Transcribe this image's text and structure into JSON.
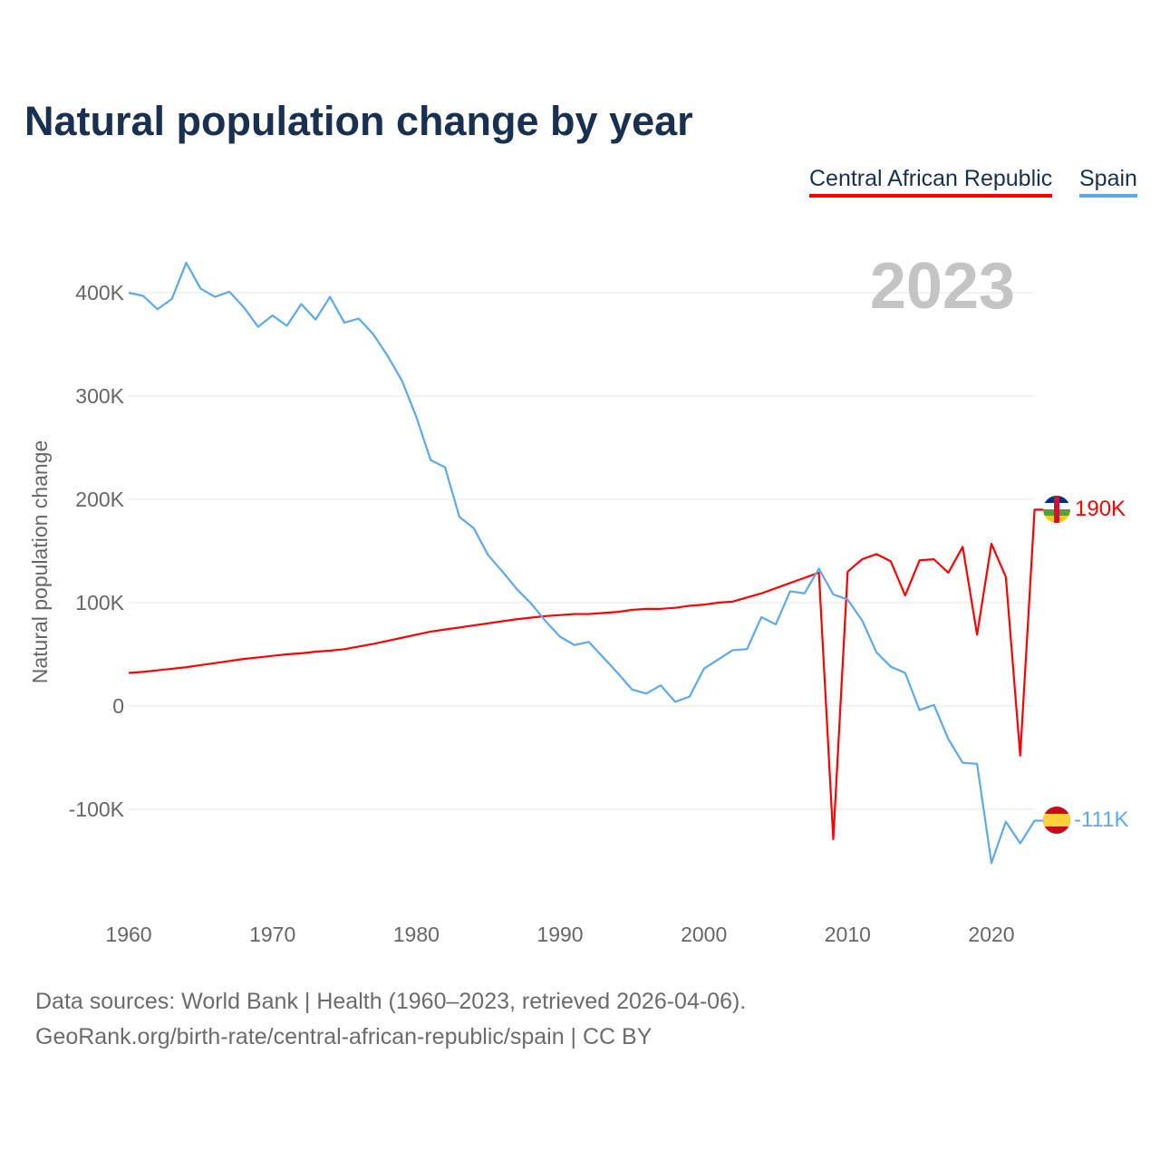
{
  "chart_data": {
    "type": "line",
    "title": "Natural population change by year",
    "ylabel": "Natural population change",
    "xlabel": "",
    "year_watermark": "2023",
    "xlim": [
      1960,
      2023
    ],
    "ylim": [
      -200000,
      450000
    ],
    "x_ticks": [
      1960,
      1970,
      1980,
      1990,
      2000,
      2010,
      2020
    ],
    "x_tick_labels": [
      "1960",
      "1970",
      "1980",
      "1990",
      "2000",
      "2010",
      "2020"
    ],
    "y_ticks": [
      -100000,
      0,
      100000,
      200000,
      300000,
      400000
    ],
    "y_tick_labels": [
      "-100K",
      "0",
      "100K",
      "200K",
      "300K",
      "400K"
    ],
    "grid": true,
    "legend_position": "top-right",
    "x": [
      1960,
      1961,
      1962,
      1963,
      1964,
      1965,
      1966,
      1967,
      1968,
      1969,
      1970,
      1971,
      1972,
      1973,
      1974,
      1975,
      1976,
      1977,
      1978,
      1979,
      1980,
      1981,
      1982,
      1983,
      1984,
      1985,
      1986,
      1987,
      1988,
      1989,
      1990,
      1991,
      1992,
      1993,
      1994,
      1995,
      1996,
      1997,
      1998,
      1999,
      2000,
      2001,
      2002,
      2003,
      2004,
      2005,
      2006,
      2007,
      2008,
      2009,
      2010,
      2011,
      2012,
      2013,
      2014,
      2015,
      2016,
      2017,
      2018,
      2019,
      2020,
      2021,
      2022,
      2023
    ],
    "series": [
      {
        "name": "Central African Republic",
        "color": "#ff0000",
        "end_label": "190K",
        "values": [
          32000,
          33000,
          34500,
          36000,
          37500,
          39500,
          41500,
          43500,
          45500,
          47000,
          48500,
          50000,
          51000,
          52500,
          53500,
          55000,
          57500,
          60000,
          63000,
          66000,
          69000,
          72000,
          74000,
          76000,
          78000,
          80000,
          82000,
          84000,
          85500,
          87000,
          88000,
          89000,
          89000,
          90000,
          91000,
          93000,
          94000,
          94000,
          95000,
          97000,
          98000,
          100000,
          101000,
          105000,
          109000,
          114000,
          119000,
          124000,
          129000,
          -129000,
          130000,
          142000,
          147000,
          140000,
          107000,
          141000,
          142000,
          129000,
          154000,
          69000,
          157000,
          125000,
          -48000,
          190000
        ]
      },
      {
        "name": "Spain",
        "color": "#5ea8ec",
        "end_label": "-111K",
        "values": [
          400000,
          397000,
          384000,
          394000,
          429000,
          404000,
          396000,
          401000,
          386000,
          367000,
          378000,
          368000,
          389000,
          374000,
          396000,
          371000,
          375000,
          360000,
          339000,
          315000,
          280000,
          238000,
          231000,
          183000,
          172000,
          146000,
          130000,
          113000,
          99000,
          82000,
          67000,
          59000,
          62000,
          47000,
          32000,
          16000,
          12000,
          20000,
          4000,
          9000,
          36000,
          45000,
          54000,
          55000,
          86000,
          79000,
          111000,
          109000,
          133000,
          108000,
          103000,
          83000,
          52000,
          38000,
          32000,
          -4000,
          1000,
          -32000,
          -55000,
          -56000,
          -152000,
          -112000,
          -133000,
          -111000
        ]
      }
    ]
  },
  "legend": {
    "car": "Central African Republic",
    "spain": "Spain"
  },
  "source": {
    "line1": "Data sources: World Bank | Health (1960–2023, retrieved 2026-04-06).",
    "line2": "GeoRank.org/birth-rate/central-african-republic/spain | CC BY"
  }
}
